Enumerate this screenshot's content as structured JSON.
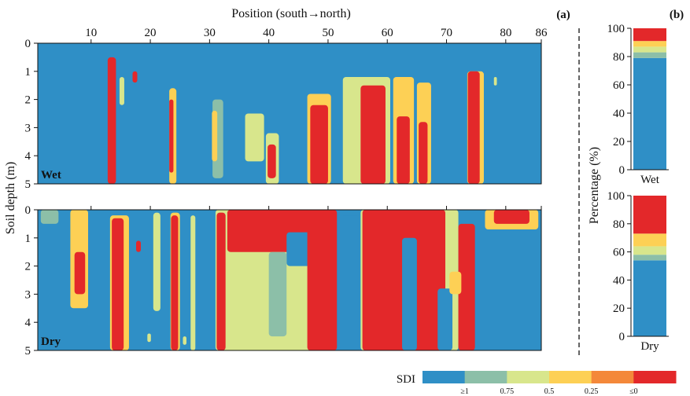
{
  "chart_data": [
    {
      "type": "heatmap",
      "panel_label": "(a)",
      "xlabel": "Position (south→north)",
      "ylabel": "Soil depth (m)",
      "xticks": [
        10,
        20,
        30,
        40,
        50,
        60,
        70,
        80,
        86
      ],
      "xlim": [
        1,
        86
      ],
      "yticks": [
        0,
        1,
        2,
        3,
        4,
        5
      ],
      "ylim": [
        0,
        5
      ],
      "panels": [
        {
          "label": "Wet",
          "background_class": "≥1",
          "patches": [
            {
              "x": 12.8,
              "w": 1.4,
              "y0": 0.5,
              "y1": 5.0,
              "cls": "≤0"
            },
            {
              "x": 14.8,
              "w": 0.8,
              "y0": 1.2,
              "y1": 2.2,
              "cls": "0.5"
            },
            {
              "x": 17.0,
              "w": 0.8,
              "y0": 1.0,
              "y1": 1.4,
              "cls": "≤0"
            },
            {
              "x": 23.2,
              "w": 1.2,
              "y0": 1.6,
              "y1": 5.0,
              "cls": "0.25"
            },
            {
              "x": 23.2,
              "w": 0.7,
              "y0": 2.0,
              "y1": 4.6,
              "cls": "≤0"
            },
            {
              "x": 30.5,
              "w": 1.8,
              "y0": 2.0,
              "y1": 4.8,
              "cls": "0.75"
            },
            {
              "x": 30.4,
              "w": 0.9,
              "y0": 2.4,
              "y1": 4.2,
              "cls": "0.25"
            },
            {
              "x": 36.0,
              "w": 3.2,
              "y0": 2.5,
              "y1": 4.2,
              "cls": "0.5"
            },
            {
              "x": 39.5,
              "w": 2.2,
              "y0": 3.2,
              "y1": 5.0,
              "cls": "0.5"
            },
            {
              "x": 39.8,
              "w": 1.4,
              "y0": 3.6,
              "y1": 4.8,
              "cls": "≤0"
            },
            {
              "x": 46.5,
              "w": 4.0,
              "y0": 1.8,
              "y1": 5.0,
              "cls": "0.25"
            },
            {
              "x": 47.0,
              "w": 3.0,
              "y0": 2.2,
              "y1": 5.0,
              "cls": "≤0"
            },
            {
              "x": 52.5,
              "w": 8.0,
              "y0": 1.2,
              "y1": 5.0,
              "cls": "0.5"
            },
            {
              "x": 55.5,
              "w": 4.2,
              "y0": 1.5,
              "y1": 5.0,
              "cls": "≤0"
            },
            {
              "x": 61.0,
              "w": 3.5,
              "y0": 1.2,
              "y1": 5.0,
              "cls": "0.25"
            },
            {
              "x": 61.6,
              "w": 2.2,
              "y0": 2.6,
              "y1": 5.0,
              "cls": "≤0"
            },
            {
              "x": 65.0,
              "w": 2.4,
              "y0": 1.4,
              "y1": 5.0,
              "cls": "0.25"
            },
            {
              "x": 65.3,
              "w": 1.5,
              "y0": 2.8,
              "y1": 5.0,
              "cls": "≤0"
            },
            {
              "x": 73.5,
              "w": 2.8,
              "y0": 1.0,
              "y1": 5.0,
              "cls": "0.25"
            },
            {
              "x": 73.6,
              "w": 2.0,
              "y0": 1.0,
              "y1": 5.0,
              "cls": "≤0"
            },
            {
              "x": 78.0,
              "w": 0.5,
              "y0": 1.2,
              "y1": 1.5,
              "cls": "0.5"
            }
          ]
        },
        {
          "label": "Dry",
          "background_class": "≥1",
          "patches": [
            {
              "x": 1.5,
              "w": 3.0,
              "y0": 0.0,
              "y1": 0.5,
              "cls": "0.75"
            },
            {
              "x": 6.5,
              "w": 3.0,
              "y0": 0.0,
              "y1": 3.5,
              "cls": "0.25"
            },
            {
              "x": 7.2,
              "w": 1.8,
              "y0": 1.5,
              "y1": 3.0,
              "cls": "≤0"
            },
            {
              "x": 13.2,
              "w": 3.2,
              "y0": 0.2,
              "y1": 5.0,
              "cls": "0.25"
            },
            {
              "x": 13.5,
              "w": 2.0,
              "y0": 0.3,
              "y1": 5.0,
              "cls": "≤0"
            },
            {
              "x": 17.6,
              "w": 0.8,
              "y0": 1.1,
              "y1": 1.5,
              "cls": "≤0"
            },
            {
              "x": 20.5,
              "w": 1.2,
              "y0": 0.1,
              "y1": 3.6,
              "cls": "0.5"
            },
            {
              "x": 23.4,
              "w": 1.6,
              "y0": 0.1,
              "y1": 5.0,
              "cls": "0.25"
            },
            {
              "x": 23.5,
              "w": 1.2,
              "y0": 0.2,
              "y1": 5.0,
              "cls": "≤0"
            },
            {
              "x": 26.8,
              "w": 0.8,
              "y0": 0.2,
              "y1": 5.0,
              "cls": "0.5"
            },
            {
              "x": 31.0,
              "w": 17.0,
              "y0": 0.0,
              "y1": 5.0,
              "cls": "0.5"
            },
            {
              "x": 33.0,
              "w": 14.0,
              "y0": 0.0,
              "y1": 1.5,
              "cls": "≤0"
            },
            {
              "x": 31.2,
              "w": 1.5,
              "y0": 0.1,
              "y1": 5.0,
              "cls": "≤0"
            },
            {
              "x": 43.0,
              "w": 4.0,
              "y0": 0.8,
              "y1": 2.0,
              "cls": "≥1"
            },
            {
              "x": 40.0,
              "w": 3.0,
              "y0": 1.5,
              "y1": 4.5,
              "cls": "0.75"
            },
            {
              "x": 46.5,
              "w": 5.0,
              "y0": 0.0,
              "y1": 5.0,
              "cls": "≤0"
            },
            {
              "x": 52.0,
              "w": 3.5,
              "y0": 0.2,
              "y1": 5.0,
              "cls": "≥1"
            },
            {
              "x": 55.5,
              "w": 16.5,
              "y0": 0.0,
              "y1": 5.0,
              "cls": "0.5"
            },
            {
              "x": 55.8,
              "w": 14.0,
              "y0": 0.0,
              "y1": 5.0,
              "cls": "≤0"
            },
            {
              "x": 62.5,
              "w": 2.5,
              "y0": 1.0,
              "y1": 5.0,
              "cls": "≥1"
            },
            {
              "x": 68.5,
              "w": 2.5,
              "y0": 2.8,
              "y1": 5.0,
              "cls": "≥1"
            },
            {
              "x": 72.0,
              "w": 2.8,
              "y0": 0.5,
              "y1": 5.0,
              "cls": "≤0"
            },
            {
              "x": 70.5,
              "w": 2.0,
              "y0": 2.2,
              "y1": 3.0,
              "cls": "0.25"
            },
            {
              "x": 76.5,
              "w": 9.0,
              "y0": 0.0,
              "y1": 0.7,
              "cls": "0.25"
            },
            {
              "x": 78.0,
              "w": 6.0,
              "y0": 0.0,
              "y1": 0.5,
              "cls": "≤0"
            },
            {
              "x": 25.5,
              "w": 0.6,
              "y0": 4.5,
              "y1": 4.8,
              "cls": "0.5"
            },
            {
              "x": 19.5,
              "w": 0.6,
              "y0": 4.4,
              "y1": 4.7,
              "cls": "0.5"
            }
          ]
        }
      ]
    },
    {
      "type": "bar",
      "panel_label": "(b)",
      "ylabel": "Percentage (%)",
      "ylim": [
        0,
        100
      ],
      "yticks": [
        0,
        20,
        40,
        60,
        80,
        100
      ],
      "categories": [
        "Wet",
        "Dry"
      ],
      "stack_order": [
        "≥1",
        "0.75",
        "0.5",
        "0.25",
        "≤0"
      ],
      "stacks": {
        "Wet": [
          79,
          4,
          4,
          4,
          9
        ],
        "Dry": [
          54,
          4,
          6,
          9,
          27
        ]
      }
    }
  ],
  "legend": {
    "title": "SDI",
    "classes": [
      {
        "key": "≥1",
        "color": "#2f8fc6"
      },
      {
        "key": "0.75",
        "color": "#8cbfa8"
      },
      {
        "key": "0.5",
        "color": "#d8e68c"
      },
      {
        "key": "0.25",
        "color": "#fdd055"
      },
      {
        "key": "≤0",
        "color": "#e3282a"
      }
    ],
    "mid_color": "#f4883a",
    "tick_labels": [
      "≥1",
      "0.75",
      "0.5",
      "0.25",
      "≤0"
    ]
  }
}
